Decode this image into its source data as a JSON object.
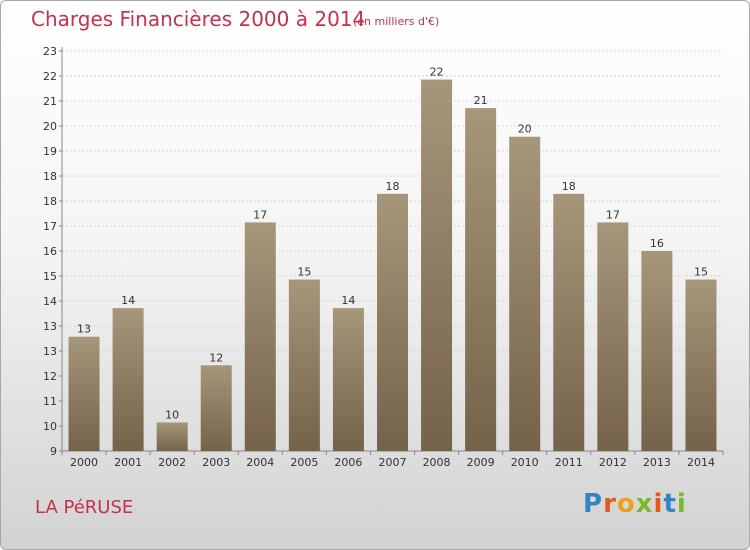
{
  "title": "Charges Financières 2000 à 2014",
  "subtitle": "(en milliers d'€)",
  "place_name": "LA PéRUSE",
  "logo": {
    "letters": [
      "P",
      "r",
      "o",
      "x",
      "i",
      "t",
      "i"
    ],
    "colors": [
      "#2e86c8",
      "#e05a1e",
      "#f0a018",
      "#7ab82c",
      "#e05a1e",
      "#2e86c8",
      "#7ab82c"
    ]
  },
  "colors": {
    "title": "#c2334a",
    "bar_top": "#a6967a",
    "bar_bottom": "#74634a"
  },
  "chart_data": {
    "type": "bar",
    "title": "Charges Financières 2000 à 2014",
    "subtitle": "(en milliers d'€)",
    "categories": [
      "2000",
      "2001",
      "2002",
      "2003",
      "2004",
      "2005",
      "2006",
      "2007",
      "2008",
      "2009",
      "2010",
      "2011",
      "2012",
      "2013",
      "2014"
    ],
    "values": [
      13,
      14,
      10,
      12,
      17,
      15,
      14,
      18,
      22,
      21,
      20,
      18,
      17,
      16,
      15
    ],
    "value_labels": [
      "13",
      "14",
      "10",
      "12",
      "17",
      "15",
      "14",
      "18",
      "22",
      "21",
      "20",
      "18",
      "17",
      "16",
      "15"
    ],
    "y_ticks": [
      "9",
      "10",
      "11",
      "12",
      "13",
      "13",
      "14",
      "15",
      "16",
      "17",
      "18",
      "18",
      "19",
      "20",
      "21",
      "22",
      "23"
    ],
    "ylim": [
      9,
      23
    ],
    "grid": true,
    "xlabel": "",
    "ylabel": ""
  }
}
